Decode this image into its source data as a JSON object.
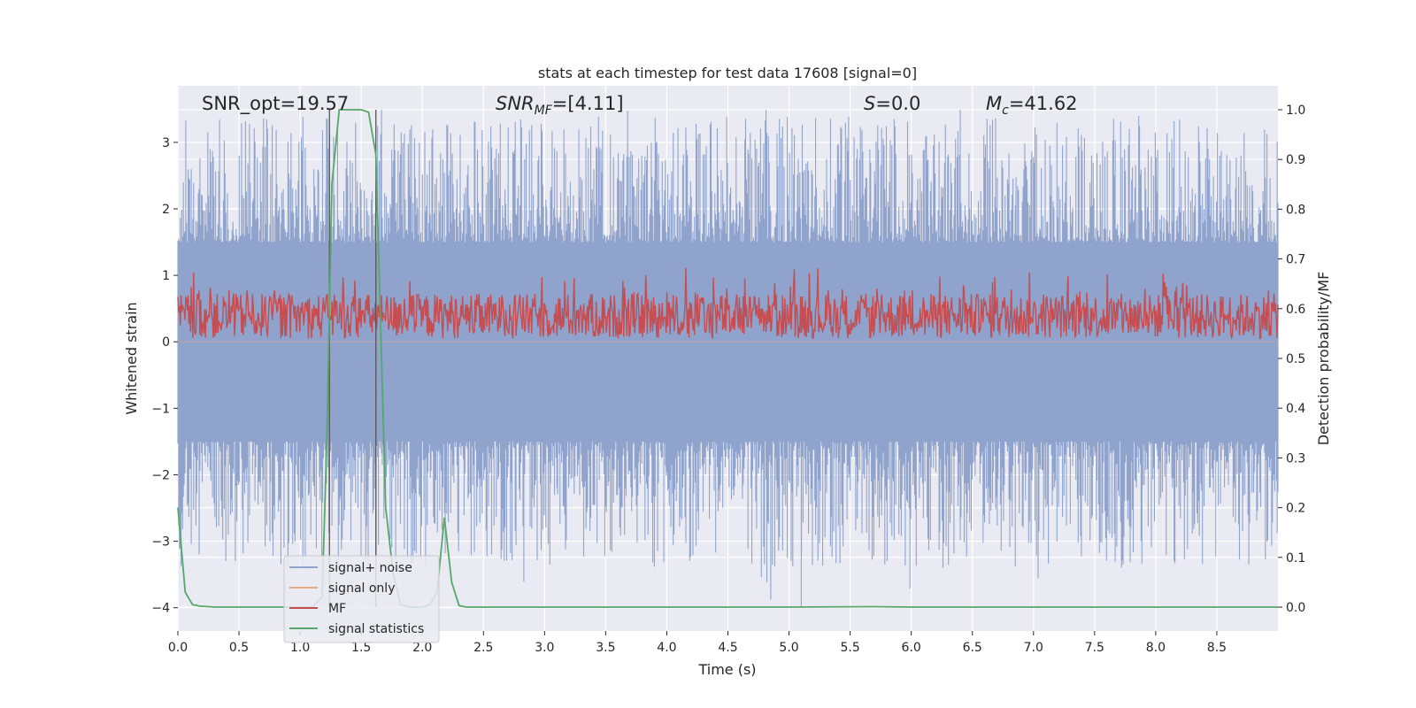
{
  "chart_data": {
    "type": "line",
    "title": "stats at each timestep for test data 17608 [signal=0]",
    "xlabel": "Time (s)",
    "ylabel": "Whitened strain",
    "y2label": "Detection probability/MF",
    "xlim": [
      0.0,
      9.0
    ],
    "ylim": [
      -4.35,
      3.85
    ],
    "y2lim": [
      -0.048,
      1.048
    ],
    "xticks": [
      0.0,
      0.5,
      1.0,
      1.5,
      2.0,
      2.5,
      3.0,
      3.5,
      4.0,
      4.5,
      5.0,
      5.5,
      6.0,
      6.5,
      7.0,
      7.5,
      8.0,
      8.5
    ],
    "xtick_labels": [
      "0.0",
      "0.5",
      "1.0",
      "1.5",
      "2.0",
      "2.5",
      "3.0",
      "3.5",
      "4.0",
      "4.5",
      "5.0",
      "5.5",
      "6.0",
      "6.5",
      "7.0",
      "7.5",
      "8.0",
      "8.5"
    ],
    "yticks": [
      3,
      2,
      1,
      0,
      -1,
      -2,
      -3,
      -4
    ],
    "ytick_labels": [
      "3",
      "2",
      "1",
      "0",
      "−1",
      "−2",
      "−3",
      "−4"
    ],
    "y2ticks": [
      1.0,
      0.9,
      0.8,
      0.7,
      0.6,
      0.5,
      0.4,
      0.3,
      0.2,
      0.1,
      0.0
    ],
    "y2tick_labels": [
      "1.0",
      "0.9",
      "0.8",
      "0.7",
      "0.6",
      "0.5",
      "0.4",
      "0.3",
      "0.2",
      "0.1",
      "0.0"
    ],
    "annotations": {
      "snr_opt": "SNR_opt=19.57",
      "snr_mf_sym": "SNR",
      "snr_mf_sub": "MF",
      "snr_mf_val": "=[4.11]",
      "s_sym": "S",
      "s_val": "=0.0",
      "mc_sym": "M",
      "mc_sub": "c",
      "mc_val": "=41.62"
    },
    "vertical_lines": [
      1.24,
      1.62
    ],
    "series": [
      {
        "name": "signal+ noise",
        "color": "#8fa3cc",
        "axis": "left",
        "noise_band": {
          "core_low": -1.5,
          "core_high": 1.5,
          "peak_high": 3.5,
          "peak_low": -4.0,
          "samples": 1400
        }
      },
      {
        "name": "signal only",
        "color": "#e8a788",
        "axis": "left",
        "values_note": "flat at 0"
      },
      {
        "name": "MF",
        "color": "#c44e52",
        "axis": "right",
        "noise_band": {
          "low": 0.54,
          "high": 0.66,
          "samples": 1400
        }
      },
      {
        "name": "signal statistics",
        "color": "#55a868",
        "axis": "right",
        "x": [
          0.0,
          0.06,
          0.12,
          0.18,
          0.3,
          0.6,
          0.9,
          1.1,
          1.18,
          1.22,
          1.26,
          1.32,
          1.4,
          1.5,
          1.56,
          1.62,
          1.66,
          1.7,
          1.76,
          1.82,
          1.9,
          2.0,
          2.06,
          2.12,
          2.18,
          2.24,
          2.3,
          2.36,
          2.5,
          3.0,
          4.0,
          5.0,
          5.7,
          6.0,
          7.0,
          8.0,
          9.0
        ],
        "y": [
          0.2,
          0.03,
          0.005,
          0.002,
          0.0,
          0.0,
          0.0,
          0.0,
          0.02,
          0.35,
          0.85,
          1.0,
          1.0,
          1.0,
          0.995,
          0.91,
          0.55,
          0.2,
          0.07,
          0.005,
          0.0,
          0.0,
          0.005,
          0.03,
          0.18,
          0.05,
          0.003,
          0.0,
          0.0,
          0.0,
          0.0,
          0.0,
          0.001,
          0.0,
          0.0,
          0.0,
          0.0
        ]
      }
    ],
    "legend_location": "lower-left"
  }
}
